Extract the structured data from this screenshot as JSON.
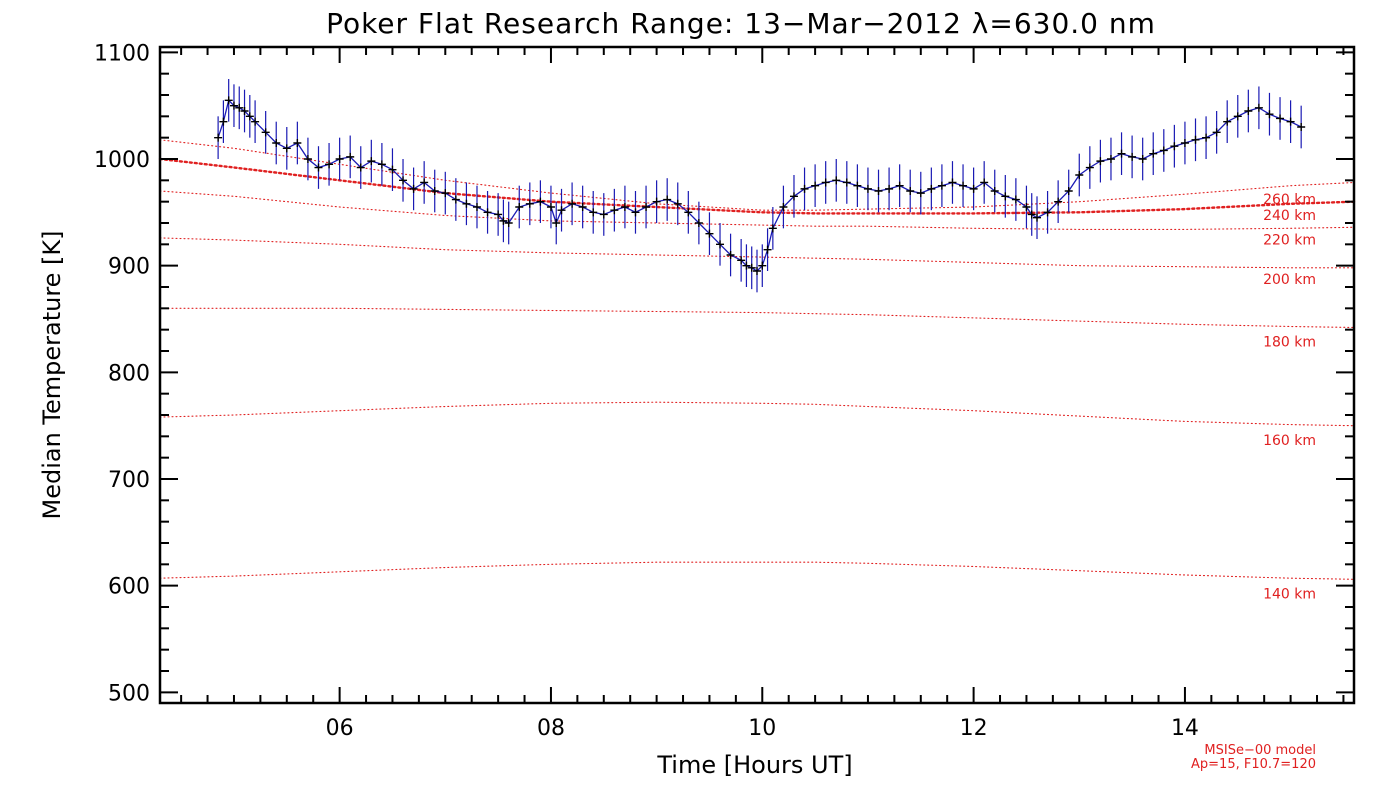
{
  "chart_data": {
    "type": "line",
    "title": "Poker Flat Research Range: 13−Mar−2012 λ=630.0 nm",
    "xlabel": "Time [Hours UT]",
    "ylabel": "Median Temperature [K]",
    "xlim": [
      4.3,
      15.6
    ],
    "ylim": [
      490,
      1105
    ],
    "x_ticks": [
      {
        "value": 6,
        "label": "06"
      },
      {
        "value": 8,
        "label": "08"
      },
      {
        "value": 10,
        "label": "10"
      },
      {
        "value": 12,
        "label": "12"
      },
      {
        "value": 14,
        "label": "14"
      }
    ],
    "y_ticks": [
      {
        "value": 500,
        "label": "500"
      },
      {
        "value": 600,
        "label": "600"
      },
      {
        "value": 700,
        "label": "700"
      },
      {
        "value": 800,
        "label": "800"
      },
      {
        "value": 900,
        "label": "900"
      },
      {
        "value": 1000,
        "label": "1000"
      },
      {
        "value": 1100,
        "label": "1100"
      }
    ],
    "grid": false,
    "series": [
      {
        "kind": "measurement",
        "color": "#1a1ab4",
        "marker_color": "#000000",
        "error_bar": 20,
        "x": [
          4.85,
          4.9,
          4.95,
          5.0,
          5.05,
          5.1,
          5.15,
          5.2,
          5.3,
          5.4,
          5.5,
          5.6,
          5.7,
          5.8,
          5.9,
          6.0,
          6.1,
          6.2,
          6.3,
          6.4,
          6.5,
          6.6,
          6.7,
          6.8,
          6.9,
          7.0,
          7.1,
          7.2,
          7.3,
          7.4,
          7.5,
          7.55,
          7.6,
          7.7,
          7.8,
          7.9,
          8.0,
          8.05,
          8.1,
          8.2,
          8.3,
          8.4,
          8.5,
          8.6,
          8.7,
          8.8,
          8.9,
          9.0,
          9.1,
          9.2,
          9.3,
          9.4,
          9.5,
          9.6,
          9.7,
          9.8,
          9.85,
          9.9,
          9.95,
          10.0,
          10.05,
          10.1,
          10.2,
          10.3,
          10.4,
          10.5,
          10.6,
          10.7,
          10.8,
          10.9,
          11.0,
          11.1,
          11.2,
          11.3,
          11.4,
          11.5,
          11.6,
          11.7,
          11.8,
          11.9,
          12.0,
          12.1,
          12.2,
          12.3,
          12.4,
          12.5,
          12.55,
          12.6,
          12.7,
          12.8,
          12.9,
          13.0,
          13.1,
          13.2,
          13.3,
          13.4,
          13.5,
          13.6,
          13.7,
          13.8,
          13.9,
          14.0,
          14.1,
          14.2,
          14.3,
          14.4,
          14.5,
          14.6,
          14.7,
          14.8,
          14.9,
          15.0,
          15.1
        ],
        "y": [
          1020,
          1035,
          1055,
          1050,
          1048,
          1045,
          1040,
          1035,
          1025,
          1015,
          1010,
          1015,
          1000,
          992,
          995,
          1000,
          1002,
          992,
          998,
          995,
          990,
          980,
          972,
          978,
          970,
          968,
          962,
          958,
          955,
          950,
          948,
          942,
          940,
          955,
          958,
          960,
          955,
          940,
          952,
          958,
          955,
          950,
          948,
          952,
          955,
          950,
          955,
          960,
          962,
          958,
          950,
          940,
          930,
          920,
          910,
          905,
          900,
          898,
          895,
          900,
          915,
          935,
          955,
          965,
          972,
          975,
          978,
          980,
          978,
          975,
          972,
          970,
          972,
          975,
          970,
          968,
          972,
          975,
          978,
          975,
          972,
          978,
          970,
          965,
          962,
          955,
          948,
          945,
          950,
          960,
          970,
          985,
          992,
          998,
          1000,
          1005,
          1002,
          1000,
          1005,
          1008,
          1012,
          1015,
          1018,
          1020,
          1025,
          1035,
          1040,
          1045,
          1048,
          1042,
          1038,
          1035,
          1030
        ]
      },
      {
        "kind": "model",
        "color": "#e02020",
        "label": "260 km",
        "x": [
          4.3,
          5,
          6,
          7,
          8,
          9,
          10,
          10.5,
          11,
          12,
          13,
          14,
          15,
          15.6
        ],
        "y": [
          1018,
          1010,
          995,
          980,
          968,
          958,
          952,
          952,
          953,
          955,
          960,
          967,
          975,
          978
        ]
      },
      {
        "kind": "model",
        "color": "#e02020",
        "label": "240 km",
        "emphasized": true,
        "x": [
          4.3,
          5,
          6,
          7,
          8,
          9,
          10,
          10.5,
          11,
          12,
          13,
          14,
          15,
          15.6
        ],
        "y": [
          1000,
          992,
          980,
          968,
          960,
          955,
          950,
          949,
          949,
          949,
          950,
          953,
          958,
          960
        ]
      },
      {
        "kind": "model",
        "color": "#e02020",
        "label": "220 km",
        "x": [
          4.3,
          5,
          6,
          7,
          8,
          9,
          10,
          10.5,
          11,
          12,
          13,
          14,
          15,
          15.6
        ],
        "y": [
          970,
          965,
          955,
          947,
          942,
          940,
          938,
          937,
          937,
          935,
          934,
          934,
          935,
          936
        ]
      },
      {
        "kind": "model",
        "color": "#e02020",
        "label": "200 km",
        "x": [
          4.3,
          5,
          6,
          7,
          8,
          9,
          10,
          10.5,
          11,
          12,
          13,
          14,
          15,
          15.6
        ],
        "y": [
          926,
          924,
          920,
          915,
          912,
          910,
          908,
          907,
          906,
          903,
          900,
          899,
          898,
          898
        ]
      },
      {
        "kind": "model",
        "color": "#e02020",
        "label": "180 km",
        "x": [
          4.3,
          5,
          6,
          7,
          8,
          9,
          10,
          10.5,
          11,
          12,
          13,
          14,
          15,
          15.6
        ],
        "y": [
          860,
          860,
          860,
          859,
          858,
          857,
          856,
          855,
          854,
          851,
          848,
          845,
          843,
          842
        ]
      },
      {
        "kind": "model",
        "color": "#e02020",
        "label": "160 km",
        "x": [
          4.3,
          5,
          6,
          7,
          8,
          9,
          10,
          10.5,
          11,
          12,
          13,
          14,
          15,
          15.6
        ],
        "y": [
          758,
          760,
          764,
          768,
          771,
          772,
          771,
          770,
          768,
          764,
          759,
          754,
          751,
          750
        ]
      },
      {
        "kind": "model",
        "color": "#e02020",
        "label": "140 km",
        "x": [
          4.3,
          5,
          6,
          7,
          8,
          9,
          10,
          10.5,
          11,
          12,
          13,
          14,
          15,
          15.6
        ],
        "y": [
          607,
          609,
          613,
          617,
          620,
          622,
          622,
          622,
          621,
          618,
          614,
          610,
          607,
          606
        ]
      }
    ],
    "model_labels": [
      {
        "text": "260 km",
        "y": 958
      },
      {
        "text": "240 km",
        "y": 943
      },
      {
        "text": "220 km",
        "y": 920
      },
      {
        "text": "200 km",
        "y": 883
      },
      {
        "text": "180 km",
        "y": 824
      },
      {
        "text": "160 km",
        "y": 732
      },
      {
        "text": "140 km",
        "y": 588
      }
    ],
    "notes": [
      "MSISe−00 model",
      "Ap=15, F10.7=120"
    ],
    "note_color": "#e02020"
  }
}
